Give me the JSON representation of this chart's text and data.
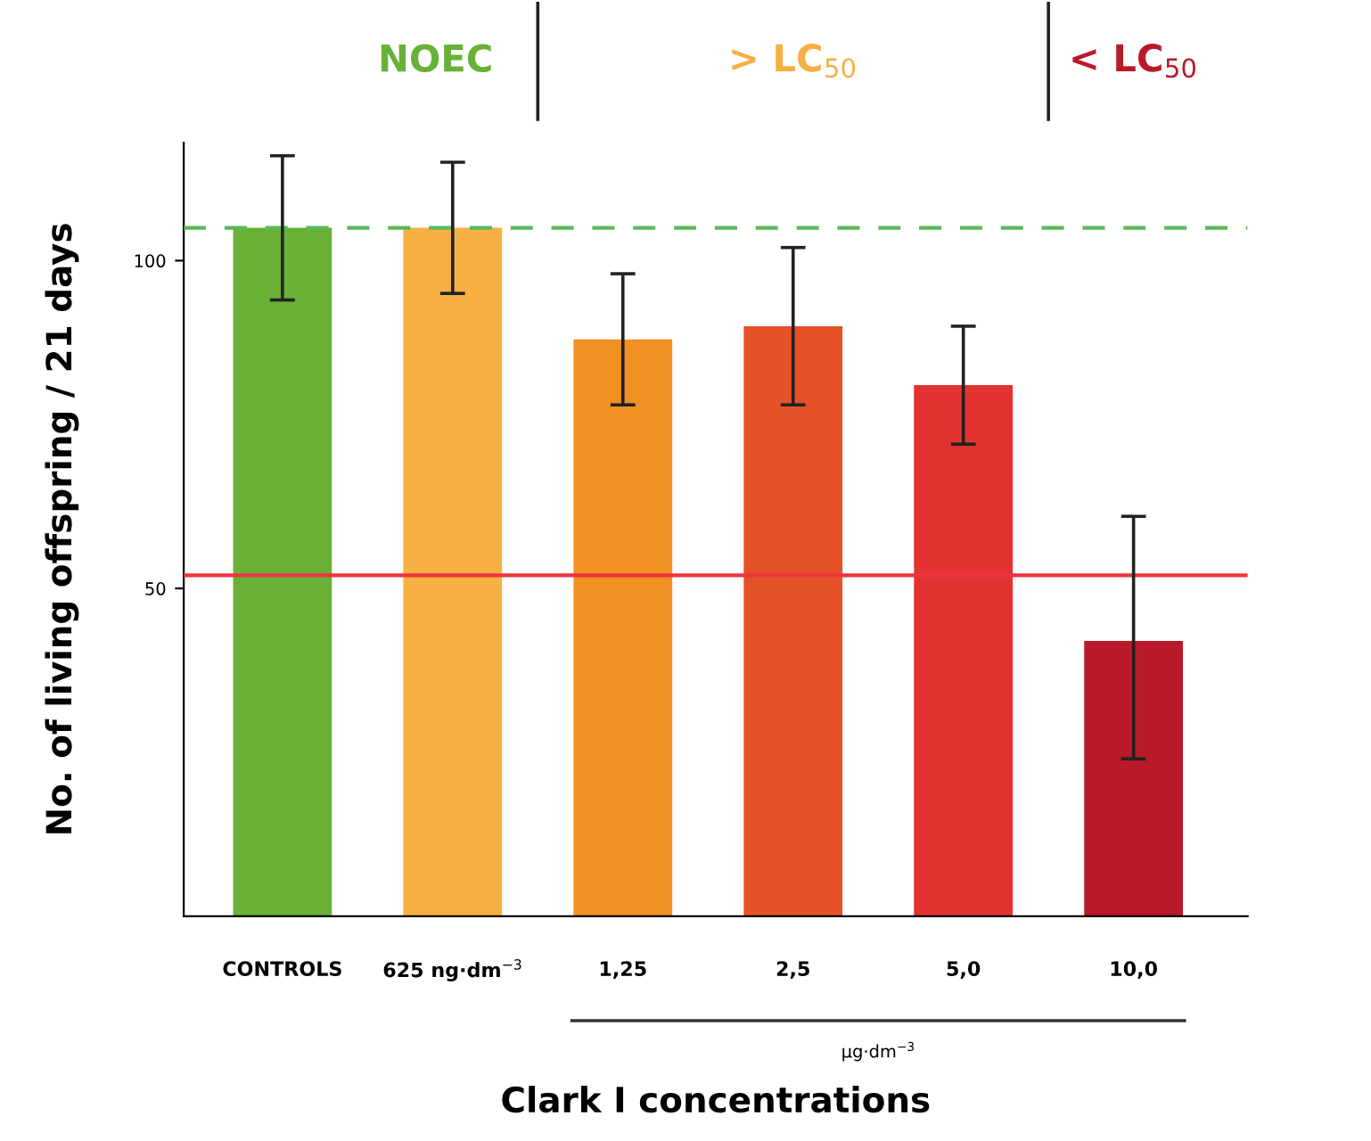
{
  "chart_data": {
    "type": "bar",
    "xlabel": "Clark I concentrations",
    "ylabel": "No. of living offspring / 21 days",
    "categories": [
      "CONTROLS",
      "625 ng·dm$^{−3}$",
      "1,25",
      "2,5",
      "5,0",
      "10,0"
    ],
    "values": [
      105,
      105,
      88,
      90,
      81,
      42
    ],
    "errors": [
      [
        94,
        116
      ],
      [
        95,
        115
      ],
      [
        78,
        98
      ],
      [
        78,
        102
      ],
      [
        72,
        90
      ],
      [
        24,
        61
      ]
    ],
    "colors": [
      "#68b136",
      "#f7b042",
      "#f09122",
      "#e55228",
      "#e33232",
      "#ba1a28"
    ],
    "ylim": [
      0,
      118
    ],
    "yticks": [
      50,
      100
    ],
    "ref_lines": [
      {
        "axis": "y",
        "value": 105,
        "color": "#5cb85c",
        "line_style": "dashed"
      },
      {
        "axis": "y",
        "value": 52,
        "color": "#ee3340",
        "line_style": "solid"
      }
    ],
    "annotations": [
      "NOEC",
      "> LC$_{50}$",
      "< LC$_{50}$",
      "µg·dm$^{−3}$"
    ],
    "grid": false
  }
}
